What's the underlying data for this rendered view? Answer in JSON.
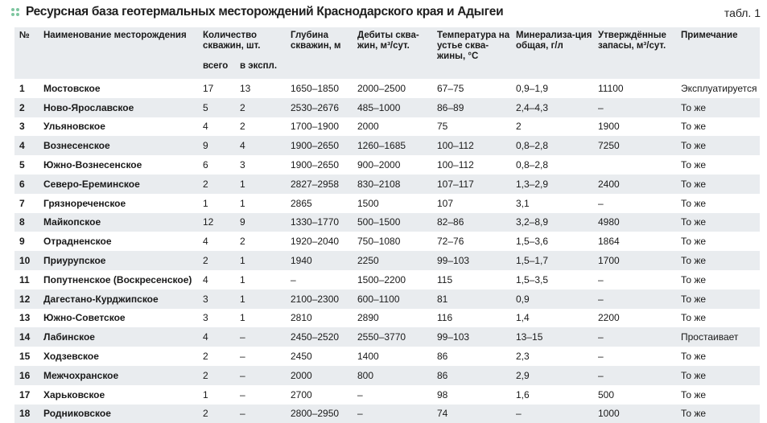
{
  "title": "Ресурсная база геотермальных месторождений Краснодарского края и Адыгеи",
  "table_label": "табл. 1",
  "colors": {
    "row_shade": "#e9ecef",
    "icon": "#7ec6a0"
  },
  "header": {
    "num": "№",
    "name": "Наименование месторождения",
    "wells": "Количество скважин, шт.",
    "wells_total": "всего",
    "wells_active": "в экспл.",
    "depth": "Глубина скважин, м",
    "debit": "Дебиты сква-жин, м³/сут.",
    "temp": "Температура на устье сква-жины, °С",
    "mineral": "Минерализа-ция общая, г/л",
    "reserves": "Утверждённые запасы, м³/сут.",
    "note": "Примечание"
  },
  "rows": [
    {
      "num": "1",
      "name": "Мостовское",
      "total": "17",
      "active": "13",
      "depth": "1650–1850",
      "debit": "2000–2500",
      "temp": "67–75",
      "mineral": "0,9–1,9",
      "reserves": "11100",
      "note": "Эксплуатируется"
    },
    {
      "num": "2",
      "name": "Ново-Ярославское",
      "total": "5",
      "active": "2",
      "depth": "2530–2676",
      "debit": "485–1000",
      "temp": "86–89",
      "mineral": "2,4–4,3",
      "reserves": "–",
      "note": "То же"
    },
    {
      "num": "3",
      "name": "Ульяновское",
      "total": "4",
      "active": "2",
      "depth": "1700–1900",
      "debit": "2000",
      "temp": "75",
      "mineral": "2",
      "reserves": "1900",
      "note": "То же"
    },
    {
      "num": "4",
      "name": "Вознесенское",
      "total": "9",
      "active": "4",
      "depth": "1900–2650",
      "debit": "1260–1685",
      "temp": "100–112",
      "mineral": "0,8–2,8",
      "reserves": "7250",
      "note": "То же"
    },
    {
      "num": "5",
      "name": "Южно-Вознесенское",
      "total": "6",
      "active": "3",
      "depth": "1900–2650",
      "debit": "900–2000",
      "temp": "100–112",
      "mineral": "0,8–2,8",
      "reserves": "",
      "note": "То же"
    },
    {
      "num": "6",
      "name": "Северо-Ереминское",
      "total": "2",
      "active": "1",
      "depth": "2827–2958",
      "debit": "830–2108",
      "temp": "107–117",
      "mineral": "1,3–2,9",
      "reserves": "2400",
      "note": "То же"
    },
    {
      "num": "7",
      "name": "Грязнореченское",
      "total": "1",
      "active": "1",
      "depth": "2865",
      "debit": "1500",
      "temp": "107",
      "mineral": "3,1",
      "reserves": "–",
      "note": "То же"
    },
    {
      "num": "8",
      "name": "Майкопское",
      "total": "12",
      "active": "9",
      "depth": "1330–1770",
      "debit": "500–1500",
      "temp": "82–86",
      "mineral": "3,2–8,9",
      "reserves": "4980",
      "note": "То же"
    },
    {
      "num": "9",
      "name": "Отрадненское",
      "total": "4",
      "active": "2",
      "depth": "1920–2040",
      "debit": "750–1080",
      "temp": "72–76",
      "mineral": "1,5–3,6",
      "reserves": "1864",
      "note": "То же"
    },
    {
      "num": "10",
      "name": "Приурупское",
      "total": "2",
      "active": "1",
      "depth": "1940",
      "debit": "2250",
      "temp": "99–103",
      "mineral": "1,5–1,7",
      "reserves": "1700",
      "note": "То же"
    },
    {
      "num": "11",
      "name": "Попутненское (Воскресенское)",
      "total": "4",
      "active": "1",
      "depth": "–",
      "debit": "1500–2200",
      "temp": "115",
      "mineral": "1,5–3,5",
      "reserves": "–",
      "note": "То же"
    },
    {
      "num": "12",
      "name": "Дагестано-Курджипское",
      "total": "3",
      "active": "1",
      "depth": "2100–2300",
      "debit": "600–1100",
      "temp": "81",
      "mineral": "0,9",
      "reserves": "–",
      "note": "То же"
    },
    {
      "num": "13",
      "name": "Южно-Советское",
      "total": "3",
      "active": "1",
      "depth": "2810",
      "debit": "2890",
      "temp": "116",
      "mineral": "1,4",
      "reserves": "2200",
      "note": "То же"
    },
    {
      "num": "14",
      "name": "Лабинское",
      "total": "4",
      "active": "–",
      "depth": "2450–2520",
      "debit": "2550–3770",
      "temp": "99–103",
      "mineral": "13–15",
      "reserves": "–",
      "note": "Простаивает"
    },
    {
      "num": "15",
      "name": "Ходзевское",
      "total": "2",
      "active": "–",
      "depth": "2450",
      "debit": "1400",
      "temp": "86",
      "mineral": "2,3",
      "reserves": "–",
      "note": "То же"
    },
    {
      "num": "16",
      "name": "Межчохранское",
      "total": "2",
      "active": "–",
      "depth": "2000",
      "debit": "800",
      "temp": "86",
      "mineral": "2,9",
      "reserves": "–",
      "note": "То же"
    },
    {
      "num": "17",
      "name": "Харьковское",
      "total": "1",
      "active": "–",
      "depth": "2700",
      "debit": "–",
      "temp": "98",
      "mineral": "1,6",
      "reserves": "500",
      "note": "То же"
    },
    {
      "num": "18",
      "name": "Родниковское",
      "total": "2",
      "active": "–",
      "depth": "2800–2950",
      "debit": "–",
      "temp": "74",
      "mineral": "–",
      "reserves": "1000",
      "note": "То же"
    }
  ]
}
